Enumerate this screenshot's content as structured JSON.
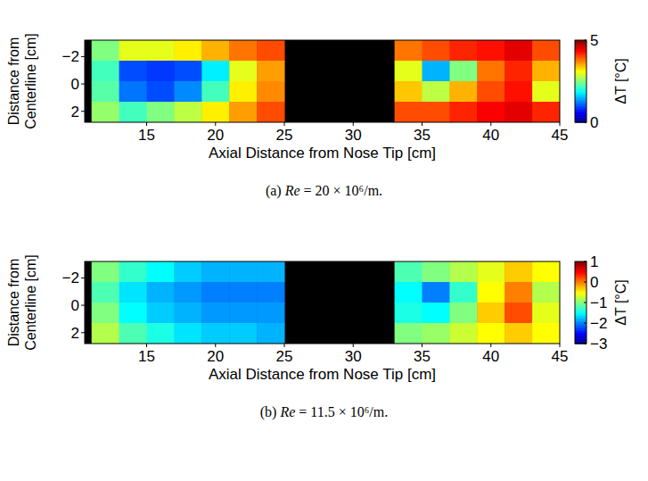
{
  "chart_data": [
    {
      "type": "heatmap",
      "caption": "(a) Re = 20 × 10⁶/m.",
      "xlabel": "Axial Distance from Nose Tip [cm]",
      "ylabel": "Distance from Centerline [cm]",
      "xlim": [
        10.5,
        45
      ],
      "ylim": [
        -3.2,
        2.8
      ],
      "xticks": [
        15,
        20,
        25,
        30,
        35,
        40,
        45
      ],
      "yticks": [
        {
          "value": -2,
          "label": "−2"
        },
        0,
        2
      ],
      "x_edges": [
        11,
        13,
        15,
        17,
        19,
        21,
        23,
        25,
        27,
        29,
        31,
        33,
        35,
        37,
        39,
        41,
        43,
        45
      ],
      "y_edges": [
        -3.2,
        -1.7,
        -0.2,
        1.3,
        2.8
      ],
      "cells": [
        [
          2.5,
          3.0,
          3.0,
          3.2,
          3.5,
          3.8,
          4.0,
          null,
          null,
          null,
          null,
          3.8,
          4.0,
          4.2,
          4.3,
          4.5,
          4.0
        ],
        [
          2.2,
          1.0,
          0.9,
          1.0,
          1.8,
          3.0,
          3.6,
          null,
          null,
          null,
          null,
          3.0,
          1.5,
          2.5,
          3.8,
          4.2,
          3.5
        ],
        [
          2.3,
          1.2,
          1.0,
          1.3,
          2.2,
          3.2,
          3.7,
          null,
          null,
          null,
          null,
          3.4,
          2.8,
          3.5,
          4.0,
          4.3,
          3.0
        ],
        [
          2.6,
          2.2,
          2.5,
          2.8,
          3.2,
          3.6,
          4.0,
          null,
          null,
          null,
          null,
          4.0,
          4.0,
          4.2,
          4.4,
          4.5,
          4.2
        ]
      ],
      "colorbar_label": "ΔT [°C]",
      "colorbar_lim": [
        0,
        5
      ],
      "colorbar_ticks": [
        0,
        5
      ]
    },
    {
      "type": "heatmap",
      "caption": "(b) Re = 11.5 × 10⁶/m.",
      "xlabel": "Axial Distance from Nose Tip [cm]",
      "ylabel": "Distance from Centerline [cm]",
      "xlim": [
        10.5,
        45
      ],
      "ylim": [
        -3.2,
        2.8
      ],
      "xticks": [
        15,
        20,
        25,
        30,
        35,
        40,
        45
      ],
      "yticks": [
        {
          "value": -2,
          "label": "−2"
        },
        0,
        2
      ],
      "x_edges": [
        11,
        13,
        15,
        17,
        19,
        21,
        23,
        25,
        27,
        29,
        31,
        33,
        35,
        37,
        39,
        41,
        43,
        45
      ],
      "y_edges": [
        -3.2,
        -1.7,
        -0.2,
        1.3,
        2.8
      ],
      "cells": [
        [
          -1.0,
          -1.3,
          -1.5,
          -1.7,
          -1.8,
          -1.8,
          -1.8,
          null,
          null,
          null,
          null,
          -1.2,
          -1.0,
          -0.8,
          -0.6,
          -0.3,
          -0.5
        ],
        [
          -1.2,
          -1.6,
          -1.8,
          -1.9,
          -2.0,
          -2.0,
          -2.0,
          null,
          null,
          null,
          null,
          -1.5,
          -2.0,
          -1.3,
          -0.5,
          0.0,
          -0.8
        ],
        [
          -1.0,
          -1.5,
          -1.7,
          -1.8,
          -1.9,
          -1.9,
          -1.9,
          null,
          null,
          null,
          null,
          -1.4,
          -1.5,
          -1.0,
          -0.3,
          0.2,
          -0.6
        ],
        [
          -0.8,
          -1.2,
          -1.4,
          -1.6,
          -1.7,
          -1.7,
          -1.8,
          null,
          null,
          null,
          null,
          -1.0,
          -0.9,
          -0.7,
          -0.5,
          -0.3,
          -0.5
        ]
      ],
      "colorbar_label": "ΔT [°C]",
      "colorbar_lim": [
        -3,
        1
      ],
      "colorbar_ticks": [
        {
          "value": 1,
          "label": "1"
        },
        {
          "value": 0,
          "label": "0"
        },
        {
          "value": -1,
          "label": "−1"
        },
        {
          "value": -2,
          "label": "−2"
        },
        {
          "value": -3,
          "label": "−3"
        }
      ]
    }
  ]
}
